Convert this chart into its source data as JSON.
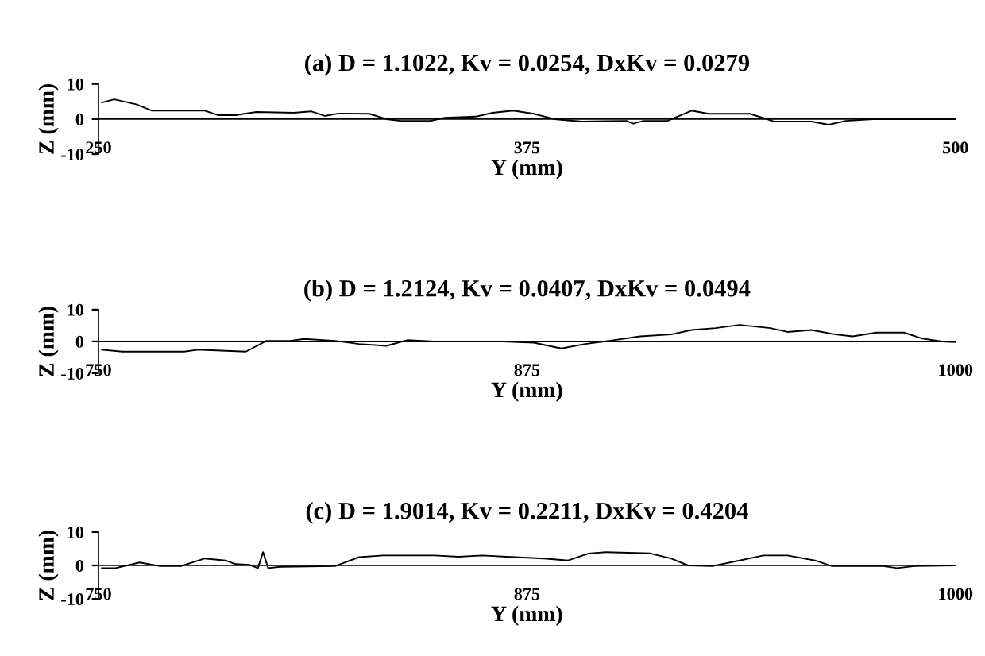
{
  "chart_data": [
    {
      "type": "line",
      "title": "(a) D = 1.1022, Kv = 0.0254, DxKv = 0.0279",
      "xlabel": "Y (mm)",
      "ylabel": "Z (mm)",
      "xlim": [
        250,
        500
      ],
      "ylim": [
        -10,
        10
      ],
      "xticks": [
        250,
        375,
        500
      ],
      "yticks": [
        -10,
        0,
        10
      ],
      "grid": false,
      "series": [
        {
          "color": "#000000",
          "x": [
            251,
            254.6,
            261,
            265.6,
            281,
            285,
            290,
            296,
            307,
            312,
            316,
            320,
            329,
            334,
            338,
            347,
            351,
            360,
            365,
            371,
            377,
            383,
            391,
            404,
            406,
            409,
            416,
            423,
            428,
            440,
            445,
            447,
            458,
            463,
            468,
            476,
            487,
            500
          ],
          "values": [
            4.7,
            5.6,
            4.2,
            2.4,
            2.4,
            1.1,
            1.1,
            2,
            1.8,
            2.2,
            0.9,
            1.6,
            1.5,
            0,
            -0.5,
            -0.5,
            0.4,
            0.7,
            1.8,
            2.4,
            1.5,
            0,
            -0.7,
            -0.5,
            -1.3,
            -0.5,
            -0.5,
            2.4,
            1.5,
            1.5,
            0,
            -0.7,
            -0.7,
            -1.6,
            -0.5,
            0,
            0,
            0
          ]
        }
      ]
    },
    {
      "type": "line",
      "title": "(b) D = 1.2124, Kv = 0.0407, DxKv = 0.0494",
      "xlabel": "Y (mm)",
      "ylabel": "Z (mm)",
      "xlim": [
        750,
        1000
      ],
      "ylim": [
        -10,
        10
      ],
      "xticks": [
        750,
        875,
        1000
      ],
      "yticks": [
        -10,
        0,
        10
      ],
      "grid": false,
      "series": [
        {
          "color": "#000000",
          "x": [
            751,
            757,
            775,
            779,
            793,
            799,
            806,
            810,
            819,
            826,
            834,
            840,
            848,
            868,
            877,
            885,
            892,
            899,
            908,
            917,
            923,
            930,
            937,
            946,
            951,
            958,
            965,
            970,
            977,
            985,
            990,
            996,
            1000
          ],
          "values": [
            -2.6,
            -3.2,
            -3.2,
            -2.6,
            -3.2,
            0.2,
            0.2,
            0.8,
            0.2,
            -0.8,
            -1.4,
            0.4,
            0,
            0,
            -0.4,
            -2.2,
            -0.8,
            0.2,
            1.6,
            2.2,
            3.6,
            4.2,
            5.2,
            4.2,
            3,
            3.6,
            2.2,
            1.6,
            2.8,
            2.8,
            1,
            0,
            -0.2
          ]
        }
      ]
    },
    {
      "type": "line",
      "title": "(c) D = 1.9014, Kv = 0.2211, DxKv = 0.4204",
      "xlabel": "Y (mm)",
      "ylabel": "Z (mm)",
      "xlim": [
        750,
        1000
      ],
      "ylim": [
        -10,
        10
      ],
      "xticks": [
        750,
        875,
        1000
      ],
      "yticks": [
        -10,
        0,
        10
      ],
      "grid": false,
      "series": [
        {
          "color": "#000000",
          "x": [
            751,
            755,
            762,
            768,
            774,
            781,
            787,
            790,
            794,
            796.5,
            798,
            799.5,
            803,
            819,
            826,
            833,
            848,
            855,
            862,
            869,
            880,
            887,
            893,
            898,
            911,
            917,
            922,
            929,
            937,
            944,
            951,
            959,
            964,
            979,
            983,
            988,
            1000
          ],
          "values": [
            -0.8,
            -0.8,
            0.9,
            -0.2,
            -0.2,
            2.1,
            1.5,
            0.4,
            0.2,
            -0.8,
            4,
            -0.8,
            -0.4,
            -0.2,
            2.5,
            3,
            3,
            2.6,
            3,
            2.6,
            2.1,
            1.5,
            3.6,
            4,
            3.6,
            2.1,
            0,
            -0.2,
            1.5,
            3,
            3,
            1.5,
            -0.2,
            -0.2,
            -0.8,
            -0.2,
            0
          ]
        }
      ]
    }
  ]
}
